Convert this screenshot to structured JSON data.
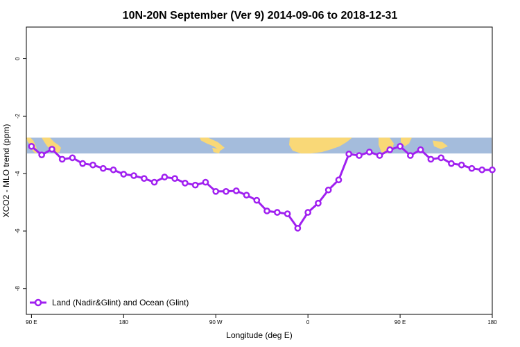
{
  "chart_data": {
    "type": "line",
    "title": "10N-20N September (Ver 9)   2014-09-06 to 2018-12-31",
    "xlabel": "Longitude (deg E)",
    "ylabel": "XCO2 - MLO trend (ppm)",
    "x_ticks": [
      {
        "value": 90,
        "label": "90 E"
      },
      {
        "value": 180,
        "label": "180"
      },
      {
        "value": 270,
        "label": "90 W"
      },
      {
        "value": 360,
        "label": "0"
      },
      {
        "value": 450,
        "label": "90 E"
      },
      {
        "value": 540,
        "label": "180"
      }
    ],
    "y_ticks": [
      0,
      -2,
      -4,
      -6,
      -8
    ],
    "xlim": [
      85,
      540
    ],
    "ylim": [
      -8.9,
      1.1
    ],
    "legend_position": "bottom-left",
    "line_color": "#a020f0",
    "map_band": {
      "ymin": -3.3,
      "ymax": -2.75,
      "ocean_color": "#a4bcdc",
      "land_color": "#f9d877"
    },
    "series": [
      {
        "name": "Land (Nadir&Glint) and Ocean (Glint)",
        "x": [
          90,
          100,
          110,
          120,
          130,
          140,
          150,
          160,
          170,
          180,
          190,
          200,
          210,
          220,
          230,
          240,
          250,
          260,
          270,
          280,
          290,
          300,
          310,
          320,
          330,
          340,
          350,
          360,
          370,
          380,
          390,
          400,
          410,
          420,
          430,
          440,
          450,
          460,
          470,
          480,
          490,
          500,
          510,
          520,
          530,
          540
        ],
        "y": [
          -3.05,
          -3.35,
          -3.15,
          -3.5,
          -3.45,
          -3.65,
          -3.7,
          -3.82,
          -3.87,
          -4.02,
          -4.07,
          -4.17,
          -4.3,
          -4.12,
          -4.17,
          -4.33,
          -4.4,
          -4.3,
          -4.62,
          -4.62,
          -4.6,
          -4.75,
          -4.93,
          -5.3,
          -5.35,
          -5.4,
          -5.9,
          -5.35,
          -5.03,
          -4.57,
          -4.22,
          -3.32,
          -3.37,
          -3.25,
          -3.37,
          -3.17,
          -3.05,
          -3.37,
          -3.17,
          -3.5,
          -3.45,
          -3.65,
          -3.7,
          -3.82,
          -3.87,
          -3.87
        ]
      }
    ]
  }
}
